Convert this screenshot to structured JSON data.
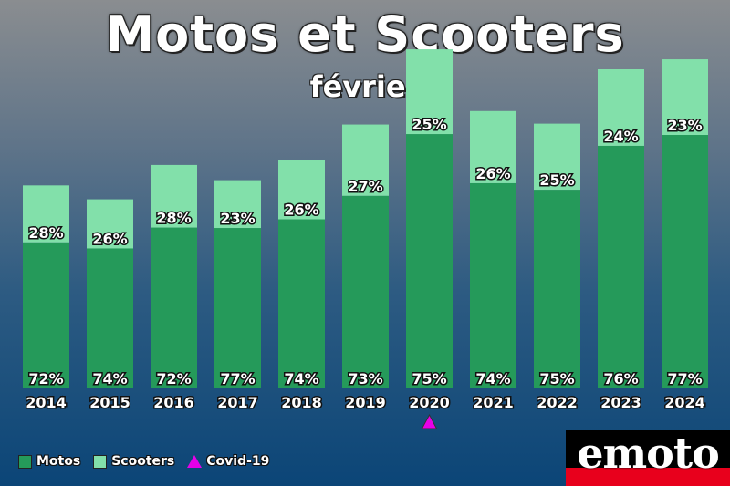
{
  "chart_data": {
    "type": "bar",
    "stacked": true,
    "title": "Motos et Scooters",
    "subtitle": "février",
    "categories": [
      "2014",
      "2015",
      "2016",
      "2017",
      "2018",
      "2019",
      "2020",
      "2021",
      "2022",
      "2023",
      "2024"
    ],
    "series": [
      {
        "name": "Motos",
        "color": "#259a5a",
        "values": [
          3360,
          3220,
          3700,
          3690,
          3890,
          4430,
          5850,
          4720,
          4570,
          5580,
          5830
        ],
        "labels": [
          "72%",
          "74%",
          "72%",
          "77%",
          "74%",
          "73%",
          "75%",
          "74%",
          "75%",
          "76%",
          "77%"
        ]
      },
      {
        "name": "Scooters",
        "color": "#82e0aa",
        "values": [
          1310,
          1130,
          1440,
          1100,
          1370,
          1640,
          1950,
          1660,
          1520,
          1760,
          1740
        ],
        "labels": [
          "28%",
          "26%",
          "28%",
          "23%",
          "26%",
          "27%",
          "25%",
          "26%",
          "25%",
          "24%",
          "23%"
        ]
      }
    ],
    "ylim": [
      0,
      8200
    ],
    "grid": false,
    "legend_position": "bottom-left",
    "annotation": {
      "category": "2020",
      "marker": "triangle",
      "color": "#e800e8",
      "label": "Covid-19"
    }
  },
  "legend": {
    "items": [
      {
        "label": "Motos",
        "color": "#259a5a",
        "shape": "square"
      },
      {
        "label": "Scooters",
        "color": "#82e0aa",
        "shape": "square"
      },
      {
        "label": "Covid-19",
        "color": "#e800e8",
        "shape": "triangle"
      }
    ]
  },
  "logo": {
    "text": "emoto"
  }
}
